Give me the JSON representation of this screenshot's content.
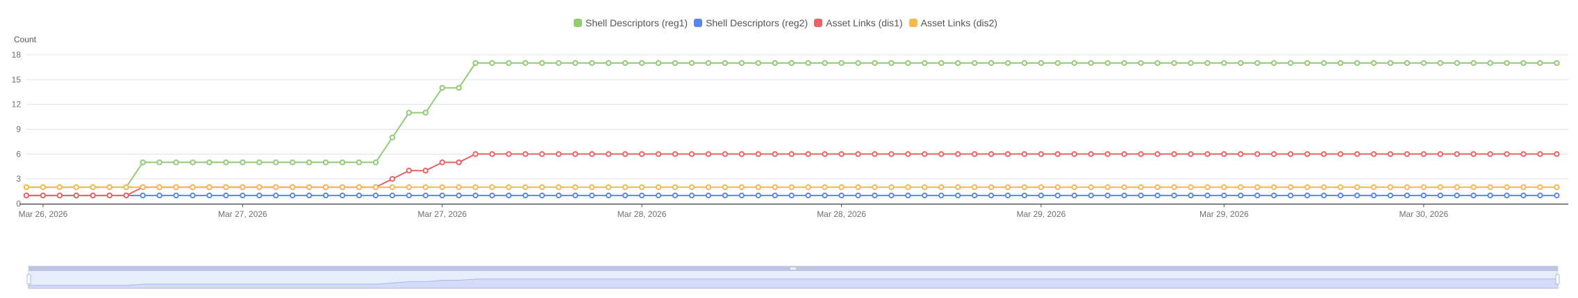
{
  "chart_data": {
    "type": "line",
    "title": "",
    "xlabel": "",
    "ylabel": "Count",
    "ylim": [
      0,
      18
    ],
    "y_ticks": [
      0,
      3,
      6,
      9,
      12,
      15,
      18
    ],
    "grid": true,
    "legend_position": "top-center",
    "x_tick_labels": [
      {
        "index": 1,
        "label": "Mar 26, 2026"
      },
      {
        "index": 13,
        "label": "Mar 27, 2026"
      },
      {
        "index": 25,
        "label": "Mar 27, 2026"
      },
      {
        "index": 37,
        "label": "Mar 28, 2026"
      },
      {
        "index": 49,
        "label": "Mar 28, 2026"
      },
      {
        "index": 61,
        "label": "Mar 29, 2026"
      },
      {
        "index": 72,
        "label": "Mar 29, 2026"
      },
      {
        "index": 84,
        "label": "Mar 30, 2026"
      }
    ],
    "num_points": 93,
    "series": [
      {
        "name": "Shell Descriptors (reg1)",
        "color": "#91cc75",
        "segments": [
          {
            "from": 0,
            "to": 6,
            "value": 2
          },
          {
            "from": 7,
            "to": 21,
            "value": 5
          },
          {
            "from": 22,
            "to": 22,
            "value": 8
          },
          {
            "from": 23,
            "to": 24,
            "value": 11
          },
          {
            "from": 25,
            "to": 26,
            "value": 14
          },
          {
            "from": 27,
            "to": 92,
            "value": 17
          }
        ]
      },
      {
        "name": "Shell Descriptors (reg2)",
        "color": "#5b85e8",
        "segments": [
          {
            "from": 0,
            "to": 92,
            "value": 1
          }
        ]
      },
      {
        "name": "Asset Links (dis1)",
        "color": "#e86464",
        "segments": [
          {
            "from": 0,
            "to": 6,
            "value": 1
          },
          {
            "from": 7,
            "to": 21,
            "value": 2
          },
          {
            "from": 22,
            "to": 22,
            "value": 3
          },
          {
            "from": 23,
            "to": 24,
            "value": 4
          },
          {
            "from": 25,
            "to": 26,
            "value": 5
          },
          {
            "from": 27,
            "to": 92,
            "value": 6
          }
        ]
      },
      {
        "name": "Asset Links (dis2)",
        "color": "#f8b94b",
        "segments": [
          {
            "from": 0,
            "to": 92,
            "value": 2
          }
        ]
      }
    ]
  },
  "legend": {
    "items": [
      {
        "label": "Shell Descriptors (reg1)",
        "color": "#91cc75"
      },
      {
        "label": "Shell Descriptors (reg2)",
        "color": "#5b85e8"
      },
      {
        "label": "Asset Links (dis1)",
        "color": "#e86464"
      },
      {
        "label": "Asset Links (dis2)",
        "color": "#f8b94b"
      }
    ]
  },
  "axis": {
    "y_title": "Count"
  },
  "data_zoom": {
    "start_percent": 0,
    "end_percent": 100
  }
}
